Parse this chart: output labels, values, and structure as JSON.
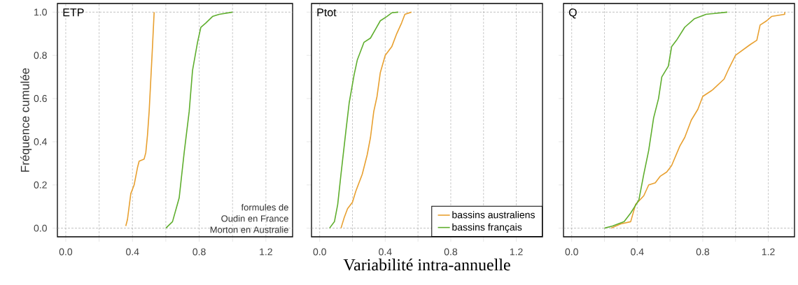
{
  "chart_data": [
    {
      "type": "line",
      "title": "ETP",
      "ylabel": "Fréquence cumulée",
      "annotations": [
        "formules de",
        "Oudin en France",
        "Morton en Australie"
      ],
      "xlim": [
        -0.05,
        1.36
      ],
      "ylim": [
        -0.04,
        1.04
      ],
      "xticks": [
        {
          "value": 0,
          "label": "0.0"
        },
        {
          "value": 0.2,
          "label": null
        },
        {
          "value": 0.4,
          "label": "0.4"
        },
        {
          "value": 0.6,
          "label": null
        },
        {
          "value": 0.8,
          "label": "0.8"
        },
        {
          "value": 1.0,
          "label": null
        },
        {
          "value": 1.2,
          "label": "1.2"
        }
      ],
      "yticks": [
        {
          "value": 0,
          "label": "0.0"
        },
        {
          "value": 0.2,
          "label": "0.2"
        },
        {
          "value": 0.4,
          "label": "0.4"
        },
        {
          "value": 0.6,
          "label": "0.6"
        },
        {
          "value": 0.8,
          "label": "0.8"
        },
        {
          "value": 1.0,
          "label": "1.0"
        }
      ],
      "grid": "x",
      "ref_lines": [
        {
          "axis": "y",
          "value": 0,
          "color": "#999999",
          "line_style": "dashed"
        },
        {
          "axis": "y",
          "value": 1,
          "color": "#999999",
          "line_style": "dashed"
        }
      ],
      "series": [
        {
          "color": "#e8a030",
          "x": [
            0.36,
            0.37,
            0.39,
            0.41,
            0.43,
            0.44,
            0.47,
            0.48,
            0.49,
            0.5,
            0.52,
            0.53
          ],
          "values": [
            0.01,
            0.04,
            0.16,
            0.2,
            0.28,
            0.31,
            0.32,
            0.35,
            0.43,
            0.54,
            0.84,
            1.0
          ]
        },
        {
          "color": "#5fae2e",
          "x": [
            0.6,
            0.64,
            0.68,
            0.71,
            0.74,
            0.76,
            0.79,
            0.81,
            0.84,
            0.88,
            0.92,
            1.0
          ],
          "values": [
            0.0,
            0.03,
            0.14,
            0.35,
            0.54,
            0.73,
            0.86,
            0.93,
            0.95,
            0.98,
            0.99,
            1.0
          ]
        }
      ]
    },
    {
      "type": "line",
      "title": "Ptot",
      "xlabel": "Variabilité intra-annuelle",
      "legend": "bottom right",
      "tick_labels": "x",
      "xlim": [
        -0.05,
        1.36
      ],
      "ylim": [
        -0.04,
        1.04
      ],
      "xticks": [
        {
          "value": 0,
          "label": "0.0"
        },
        {
          "value": 0.2,
          "label": null
        },
        {
          "value": 0.4,
          "label": "0.4"
        },
        {
          "value": 0.6,
          "label": null
        },
        {
          "value": 0.8,
          "label": "0.8"
        },
        {
          "value": 1.0,
          "label": null
        },
        {
          "value": 1.2,
          "label": "1.2"
        }
      ],
      "yticks": [
        {
          "value": 0,
          "label": null
        },
        {
          "value": 0.2,
          "label": null
        },
        {
          "value": 0.4,
          "label": null
        },
        {
          "value": 0.6,
          "label": null
        },
        {
          "value": 0.8,
          "label": null
        },
        {
          "value": 1.0,
          "label": null
        }
      ],
      "grid": "x",
      "ref_lines": [
        {
          "axis": "y",
          "value": 0,
          "color": "#999999",
          "line_style": "dashed"
        },
        {
          "axis": "y",
          "value": 1,
          "color": "#999999",
          "line_style": "dashed"
        }
      ],
      "series": [
        {
          "name": "bassins australiens",
          "color": "#e8a030",
          "x": [
            0.13,
            0.15,
            0.17,
            0.2,
            0.22,
            0.26,
            0.29,
            0.31,
            0.33,
            0.35,
            0.37,
            0.4,
            0.44,
            0.47,
            0.5,
            0.52,
            0.56
          ],
          "values": [
            0.0,
            0.05,
            0.09,
            0.12,
            0.17,
            0.25,
            0.34,
            0.42,
            0.54,
            0.61,
            0.72,
            0.8,
            0.84,
            0.9,
            0.95,
            0.99,
            1.0
          ]
        },
        {
          "name": "bassins français",
          "color": "#5fae2e",
          "x": [
            0.06,
            0.09,
            0.11,
            0.13,
            0.16,
            0.18,
            0.21,
            0.23,
            0.27,
            0.31,
            0.34,
            0.37,
            0.41,
            0.44,
            0.48
          ],
          "values": [
            0.0,
            0.03,
            0.11,
            0.25,
            0.45,
            0.58,
            0.71,
            0.78,
            0.86,
            0.88,
            0.92,
            0.96,
            0.98,
            0.997,
            1.0
          ]
        }
      ]
    },
    {
      "type": "line",
      "title": "Q",
      "tick_labels": "x",
      "xlim": [
        -0.05,
        1.36
      ],
      "ylim": [
        -0.04,
        1.04
      ],
      "xticks": [
        {
          "value": 0,
          "label": "0.0"
        },
        {
          "value": 0.2,
          "label": null
        },
        {
          "value": 0.4,
          "label": "0.4"
        },
        {
          "value": 0.6,
          "label": null
        },
        {
          "value": 0.8,
          "label": "0.8"
        },
        {
          "value": 1.0,
          "label": null
        },
        {
          "value": 1.2,
          "label": "1.2"
        }
      ],
      "yticks": [
        {
          "value": 0,
          "label": null
        },
        {
          "value": 0.2,
          "label": null
        },
        {
          "value": 0.4,
          "label": null
        },
        {
          "value": 0.6,
          "label": null
        },
        {
          "value": 0.8,
          "label": null
        },
        {
          "value": 1.0,
          "label": null
        }
      ],
      "grid": "x",
      "ref_lines": [
        {
          "axis": "y",
          "value": 0,
          "color": "#999999",
          "line_style": "dashed"
        },
        {
          "axis": "y",
          "value": 1,
          "color": "#999999",
          "line_style": "dashed"
        }
      ],
      "series": [
        {
          "color": "#e8a030",
          "x": [
            0.24,
            0.3,
            0.36,
            0.39,
            0.44,
            0.47,
            0.51,
            0.54,
            0.58,
            0.61,
            0.66,
            0.69,
            0.73,
            0.77,
            0.8,
            0.86,
            0.93,
            0.96,
            1.0,
            1.09,
            1.13,
            1.15,
            1.19,
            1.22,
            1.3,
            1.3
          ],
          "values": [
            0.0,
            0.02,
            0.03,
            0.11,
            0.15,
            0.2,
            0.21,
            0.24,
            0.26,
            0.29,
            0.38,
            0.42,
            0.5,
            0.55,
            0.61,
            0.64,
            0.69,
            0.74,
            0.8,
            0.85,
            0.87,
            0.94,
            0.96,
            0.98,
            0.99,
            1.0
          ]
        },
        {
          "color": "#5fae2e",
          "x": [
            0.2,
            0.25,
            0.32,
            0.36,
            0.41,
            0.44,
            0.47,
            0.5,
            0.53,
            0.55,
            0.59,
            0.61,
            0.64,
            0.69,
            0.75,
            0.82,
            0.95
          ],
          "values": [
            0.0,
            0.01,
            0.03,
            0.07,
            0.13,
            0.25,
            0.36,
            0.51,
            0.6,
            0.7,
            0.75,
            0.84,
            0.87,
            0.93,
            0.97,
            0.99,
            1.0
          ]
        }
      ]
    }
  ]
}
